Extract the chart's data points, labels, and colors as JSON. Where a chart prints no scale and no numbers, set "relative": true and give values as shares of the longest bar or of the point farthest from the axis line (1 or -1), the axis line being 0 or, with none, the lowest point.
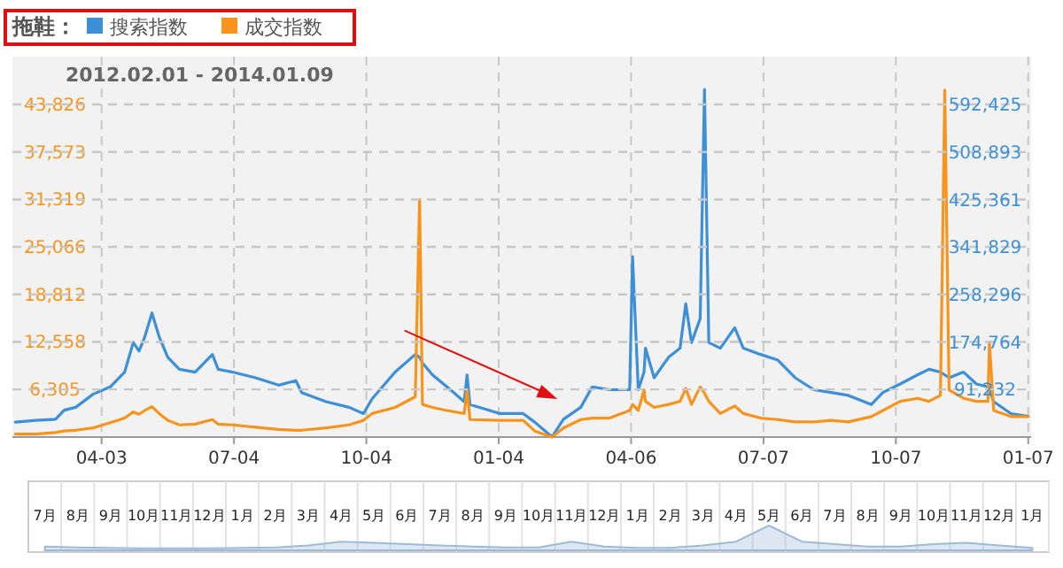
{
  "chart_data": [
    {
      "type": "line",
      "subtitle": "2012.02.01 - 2014.01.09",
      "legend_title": "拖鞋：",
      "legend": "top left",
      "grid": true,
      "x": [
        "2012-02-03",
        "2012-02-17",
        "2012-03-02",
        "2012-03-08",
        "2012-03-16",
        "2012-03-28",
        "2012-04-09",
        "2012-04-19",
        "2012-04-25",
        "2012-04-29",
        "2012-05-03",
        "2012-05-08",
        "2012-05-13",
        "2012-05-19",
        "2012-05-27",
        "2012-06-07",
        "2012-06-19",
        "2012-06-23",
        "2012-07-03",
        "2012-07-19",
        "2012-08-04",
        "2012-08-16",
        "2012-08-20",
        "2012-09-06",
        "2012-09-22",
        "2012-10-02",
        "2012-10-08",
        "2012-10-24",
        "2012-11-07",
        "2012-11-10",
        "2012-11-12",
        "2012-11-19",
        "2012-11-29",
        "2012-12-11",
        "2012-12-13",
        "2012-12-15",
        "2013-01-05",
        "2013-01-21",
        "2013-01-29",
        "2013-02-10",
        "2013-02-18",
        "2013-03-02",
        "2013-03-10",
        "2013-03-22",
        "2013-04-05",
        "2013-04-07",
        "2013-04-11",
        "2013-04-15",
        "2013-04-16",
        "2013-04-22",
        "2013-05-02",
        "2013-05-10",
        "2013-05-14",
        "2013-05-18",
        "2013-05-24",
        "2013-05-27",
        "2013-05-30",
        "2013-06-07",
        "2013-06-17",
        "2013-06-23",
        "2013-07-05",
        "2013-07-17",
        "2013-07-29",
        "2013-08-11",
        "2013-08-23",
        "2013-09-04",
        "2013-09-20",
        "2013-09-28",
        "2013-10-10",
        "2013-10-22",
        "2013-10-30",
        "2013-11-07",
        "2013-11-10",
        "2013-11-13",
        "2013-11-23",
        "2013-12-02",
        "2013-12-10",
        "2013-12-11",
        "2013-12-14",
        "2013-12-26",
        "2014-01-07"
      ],
      "series": [
        {
          "name": "搜索指数",
          "color": "#3d8fd6",
          "axis": "y2",
          "values": [
            34000,
            37000,
            39000,
            55000,
            60000,
            83000,
            96000,
            122000,
            174000,
            159000,
            184000,
            226000,
            184000,
            148000,
            127000,
            122000,
            153000,
            127000,
            122000,
            112000,
            99000,
            107000,
            86000,
            70000,
            60000,
            49000,
            75000,
            122000,
            153000,
            148000,
            138000,
            117000,
            96000,
            70000,
            117000,
            65000,
            49000,
            49000,
            34000,
            8000,
            39000,
            60000,
            96000,
            91000,
            91000,
            325000,
            91000,
            122000,
            164000,
            112000,
            148000,
            164000,
            242000,
            174000,
            216000,
            619000,
            174000,
            164000,
            200000,
            164000,
            153000,
            143000,
            112000,
            91000,
            86000,
            81000,
            65000,
            86000,
            101000,
            117000,
            127000,
            122000,
            117000,
            112000,
            122000,
            101000,
            96000,
            91000,
            70000,
            49000,
            44000
          ]
        },
        {
          "name": "成交指数",
          "color": "#f7941d",
          "values": [
            400,
            400,
            600,
            800,
            900,
            1200,
            1900,
            2500,
            3300,
            3000,
            3500,
            4000,
            3100,
            2200,
            1600,
            1700,
            2300,
            1700,
            1600,
            1300,
            1000,
            900,
            900,
            1200,
            1600,
            2200,
            3100,
            3900,
            5300,
            31300,
            4300,
            3900,
            3500,
            3100,
            6200,
            2300,
            2200,
            2200,
            800,
            0,
            1200,
            2300,
            2500,
            2500,
            3500,
            4300,
            3500,
            6200,
            4700,
            3900,
            4300,
            4700,
            6400,
            4300,
            6600,
            5800,
            4700,
            3100,
            4100,
            3100,
            2500,
            2300,
            2000,
            2000,
            2200,
            2000,
            2700,
            3500,
            4700,
            5100,
            4700,
            5500,
            45700,
            6200,
            5100,
            4700,
            4700,
            12500,
            3500,
            2700,
            2700
          ]
        }
      ],
      "xlim": [
        "2012-02-01",
        "2014-01-09"
      ],
      "xticks": [
        {
          "value": "2012-04-03",
          "label": "04-03"
        },
        {
          "value": "2012-07-04",
          "label": "07-04"
        },
        {
          "value": "2012-10-04",
          "label": "10-04"
        },
        {
          "value": "2013-01-04",
          "label": "01-04"
        },
        {
          "value": "2013-04-06",
          "label": "04-06"
        },
        {
          "value": "2013-07-07",
          "label": "07-07"
        },
        {
          "value": "2013-10-07",
          "label": "10-07"
        },
        {
          "value": "2014-01-07",
          "label": "01-07"
        }
      ],
      "ylim": [
        0,
        50100
      ],
      "yticks": [
        {
          "value": 6305,
          "label": "6,305"
        },
        {
          "value": 12558,
          "label": "12,558"
        },
        {
          "value": 18812,
          "label": "18,812"
        },
        {
          "value": 25066,
          "label": "25,066"
        },
        {
          "value": 31319,
          "label": "31,319"
        },
        {
          "value": 37573,
          "label": "37,573"
        },
        {
          "value": 43826,
          "label": "43,826"
        }
      ],
      "y2lim": [
        7700,
        676900
      ],
      "y2ticks": [
        {
          "value": 91232,
          "label": "91,232"
        },
        {
          "value": 174764,
          "label": "174,764"
        },
        {
          "value": 258296,
          "label": "258,296"
        },
        {
          "value": 341829,
          "label": "341,829"
        },
        {
          "value": 425361,
          "label": "425,361"
        },
        {
          "value": 508893,
          "label": "508,893"
        },
        {
          "value": 592425,
          "label": "592,425"
        }
      ]
    },
    {
      "type": "area",
      "relative": true,
      "color": "#9dbbd8",
      "categories": [
        "7月",
        "8月",
        "9月",
        "10月",
        "11月",
        "12月",
        "1月",
        "2月",
        "3月",
        "4月",
        "5月",
        "6月",
        "7月",
        "8月",
        "9月",
        "10月",
        "11月",
        "12月",
        "1月",
        "2月",
        "3月",
        "4月",
        "5月",
        "6月",
        "7月",
        "8月",
        "9月",
        "10月",
        "11月",
        "12月",
        "1月"
      ],
      "values": [
        0.15,
        0.12,
        0.1,
        0.08,
        0.08,
        0.08,
        0.1,
        0.12,
        0.2,
        0.35,
        0.3,
        0.25,
        0.2,
        0.15,
        0.12,
        0.12,
        0.35,
        0.15,
        0.1,
        0.1,
        0.2,
        0.35,
        1,
        0.35,
        0.25,
        0.15,
        0.15,
        0.25,
        0.3,
        0.2,
        0.1
      ]
    }
  ]
}
